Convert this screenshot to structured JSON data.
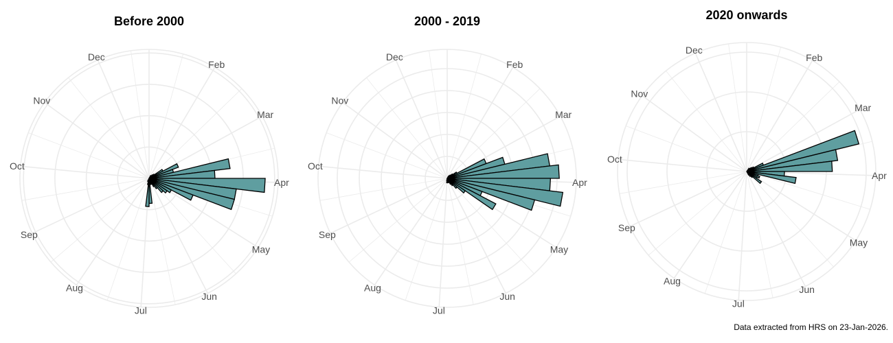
{
  "caption": "Data extracted from HRS on 23-Jan-2026.",
  "colors": {
    "bar_fill": "#5f9ea0",
    "bar_outline": "#000000",
    "grid": "#ebebeb"
  },
  "chart_data": [
    {
      "type": "bar",
      "coordinates": "polar",
      "title": "Before 2000",
      "x_tick_labels": [
        "Feb",
        "Mar",
        "Apr",
        "May",
        "Jun",
        "Jul",
        "Aug",
        "Sep",
        "Oct",
        "Nov",
        "Dec"
      ],
      "bins": "week of year (1-52)",
      "radial_gridlines": 4,
      "grid": true,
      "values": [
        0,
        0,
        0,
        0,
        0.1,
        0.1,
        0.15,
        0.2,
        0.5,
        1.0,
        0.8,
        2.6,
        2.1,
        3.7,
        2.8,
        2.8,
        1.5,
        0.8,
        0.7,
        0.6,
        0.4,
        0.3,
        0.2,
        0.2,
        0.2,
        0.8,
        0.9,
        0.2,
        0.1,
        0.1,
        0,
        0,
        0,
        0,
        0,
        0,
        0,
        0,
        0,
        0,
        0,
        0,
        0,
        0,
        0,
        0,
        0,
        0,
        0,
        0,
        0,
        0
      ]
    },
    {
      "type": "bar",
      "coordinates": "polar",
      "title": "2000 - 2019",
      "x_tick_labels": [
        "Feb",
        "Mar",
        "Apr",
        "May",
        "Jun",
        "Jul",
        "Aug",
        "Sep",
        "Oct",
        "Nov",
        "Dec"
      ],
      "bins": "week of year (1-52)",
      "radial_gridlines": 5,
      "grid": true,
      "values": [
        0,
        0,
        0,
        0,
        0.1,
        0.15,
        0.2,
        0.3,
        0.5,
        1.9,
        2.7,
        4.7,
        5.1,
        4.7,
        5.3,
        4.1,
        1.7,
        2.5,
        1.0,
        0.6,
        0.4,
        0.3,
        0.2,
        0.2,
        0.2,
        0.2,
        0.2,
        0.1,
        0,
        0,
        0,
        0,
        0,
        0,
        0,
        0,
        0,
        0,
        0,
        0,
        0,
        0,
        0,
        0,
        0,
        0,
        0,
        0,
        0,
        0,
        0,
        0
      ]
    },
    {
      "type": "bar",
      "coordinates": "polar",
      "title": "2020 onwards",
      "x_tick_labels": [
        "Feb",
        "Mar",
        "Apr",
        "May",
        "Jun",
        "Jul",
        "Aug",
        "Sep",
        "Oct",
        "Nov",
        "Dec"
      ],
      "bins": "week of year (1-52)",
      "radial_gridlines": 3,
      "grid": true,
      "values": [
        0,
        0,
        0,
        0,
        0,
        0.1,
        0.1,
        0.15,
        0.2,
        0.45,
        2.9,
        2.3,
        2.15,
        0.95,
        1.25,
        0.3,
        0.35,
        0.3,
        0.45,
        0.2,
        0.15,
        0.1,
        0,
        0,
        0,
        0,
        0,
        0,
        0,
        0,
        0,
        0,
        0,
        0,
        0,
        0,
        0,
        0,
        0,
        0,
        0,
        0,
        0,
        0,
        0,
        0,
        0,
        0,
        0,
        0,
        0,
        0
      ]
    }
  ]
}
